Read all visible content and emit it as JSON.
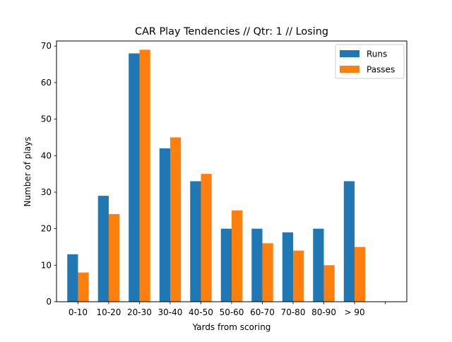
{
  "chart_data": {
    "type": "bar",
    "title": "CAR Play Tendencies // Qtr: 1 // Losing",
    "xlabel": "Yards from scoring",
    "ylabel": "Number of plays",
    "categories": [
      "0-10",
      "10-20",
      "20-30",
      "30-40",
      "40-50",
      "50-60",
      "60-70",
      "70-80",
      "80-90",
      "> 90",
      ""
    ],
    "series": [
      {
        "name": "Runs",
        "color": "#1f77b4",
        "values": [
          13,
          29,
          68,
          42,
          33,
          20,
          20,
          19,
          20,
          33,
          0
        ]
      },
      {
        "name": "Passes",
        "color": "#ff7f0e",
        "values": [
          8,
          24,
          69,
          45,
          35,
          25,
          16,
          14,
          10,
          15,
          0
        ]
      }
    ],
    "ylim": [
      0,
      71.4
    ],
    "yticks": [
      0,
      10,
      20,
      30,
      40,
      50,
      60,
      70
    ],
    "grid": false,
    "legend_position": "top-right"
  }
}
